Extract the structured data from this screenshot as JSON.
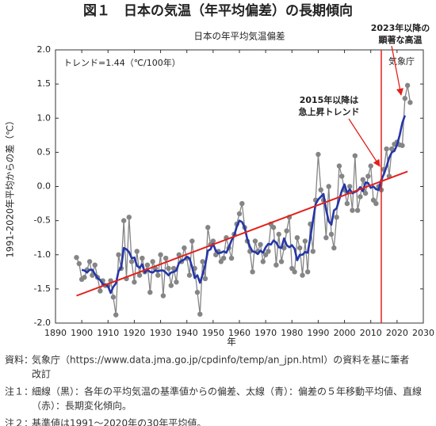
{
  "title": "図１　日本の気温（年平均偏差）の長期傾向",
  "chart_data": {
    "type": "line",
    "title": "日本の年平均気温偏差",
    "x_label": "年",
    "y_label": "1991-2020年平均からの差（℃）",
    "xlim": [
      1890,
      2030
    ],
    "xticks": [
      1890,
      1900,
      1910,
      1920,
      1930,
      1940,
      1950,
      1960,
      1970,
      1980,
      1990,
      2000,
      2010,
      2020,
      2030
    ],
    "ylim": [
      -2,
      2
    ],
    "yticks": [
      {
        "value": -2,
        "label": "-2.0"
      },
      {
        "value": -1.5,
        "label": "-1.5"
      },
      {
        "value": -1,
        "label": "-1.0"
      },
      {
        "value": -0.5,
        "label": "-0.5"
      },
      {
        "value": 0,
        "label": "0.0"
      },
      {
        "value": 0.5,
        "label": "0.5"
      },
      {
        "value": 1,
        "label": "1.0"
      },
      {
        "value": 1.5,
        "label": "1.5"
      },
      {
        "value": 2,
        "label": "2.0"
      }
    ],
    "grid": false,
    "x": [
      1898,
      1899,
      1900,
      1901,
      1902,
      1903,
      1904,
      1905,
      1906,
      1907,
      1908,
      1909,
      1910,
      1911,
      1912,
      1913,
      1914,
      1915,
      1916,
      1917,
      1918,
      1919,
      1920,
      1921,
      1922,
      1923,
      1924,
      1925,
      1926,
      1927,
      1928,
      1929,
      1930,
      1931,
      1932,
      1933,
      1934,
      1935,
      1936,
      1937,
      1938,
      1939,
      1940,
      1941,
      1942,
      1943,
      1944,
      1945,
      1946,
      1947,
      1948,
      1949,
      1950,
      1951,
      1952,
      1953,
      1954,
      1955,
      1956,
      1957,
      1958,
      1959,
      1960,
      1961,
      1962,
      1963,
      1964,
      1965,
      1966,
      1967,
      1968,
      1969,
      1970,
      1971,
      1972,
      1973,
      1974,
      1975,
      1976,
      1977,
      1978,
      1979,
      1980,
      1981,
      1982,
      1983,
      1984,
      1985,
      1986,
      1987,
      1988,
      1989,
      1990,
      1991,
      1992,
      1993,
      1994,
      1995,
      1996,
      1997,
      1998,
      1999,
      2000,
      2001,
      2002,
      2003,
      2004,
      2005,
      2006,
      2007,
      2008,
      2009,
      2010,
      2011,
      2012,
      2013,
      2014,
      2015,
      2016,
      2017,
      2018,
      2019,
      2020,
      2021,
      2022,
      2023,
      2024,
      2025
    ],
    "series": [
      {
        "color": "#858585",
        "markers": true,
        "width": 1.3,
        "values": [
          -1.04,
          -1.13,
          -1.36,
          -1.33,
          -1.22,
          -1.1,
          -1.3,
          -1.15,
          -1.33,
          -1.53,
          -1.38,
          -1.45,
          -1.45,
          -1.38,
          -1.62,
          -1.88,
          -1.0,
          -1.2,
          -0.5,
          -1.35,
          -0.45,
          -1.1,
          -1.4,
          -0.95,
          -1.3,
          -1.05,
          -1.25,
          -1.15,
          -1.55,
          -1.1,
          -1.2,
          -1.3,
          -1.0,
          -1.6,
          -1.05,
          -1.2,
          -1.45,
          -1.2,
          -1.4,
          -1.0,
          -1.1,
          -0.9,
          -1.05,
          -1.3,
          -0.8,
          -1.2,
          -1.55,
          -1.87,
          -1.1,
          -1.35,
          -0.6,
          -0.85,
          -0.8,
          -1.0,
          -0.95,
          -1.1,
          -1.05,
          -0.75,
          -0.9,
          -1.05,
          -0.7,
          -0.55,
          -0.4,
          -0.25,
          -0.6,
          -0.8,
          -0.95,
          -1.25,
          -0.8,
          -0.95,
          -0.85,
          -1.1,
          -1.0,
          -0.95,
          -0.55,
          -0.6,
          -1.15,
          -0.7,
          -1.1,
          -0.9,
          -0.65,
          -0.45,
          -1.2,
          -1.25,
          -0.75,
          -0.9,
          -1.3,
          -0.8,
          -1.25,
          -0.55,
          -0.95,
          -0.2,
          0.47,
          -0.05,
          -0.2,
          -0.75,
          0.0,
          -0.7,
          -0.9,
          -0.45,
          0.3,
          0.15,
          -0.05,
          -0.25,
          0.0,
          -0.35,
          0.45,
          -0.35,
          -0.15,
          0.1,
          -0.1,
          0.15,
          0.3,
          -0.2,
          -0.25,
          0.0,
          -0.05,
          0.25,
          0.55,
          0.15,
          0.55,
          0.62,
          0.65,
          0.61,
          0.6,
          1.29,
          1.48,
          1.23
        ]
      },
      {
        "color": "#2536a8",
        "markers": false,
        "width": 2.6,
        "values": [
          null,
          null,
          -1.22,
          -1.23,
          -1.26,
          -1.22,
          -1.22,
          -1.28,
          -1.34,
          -1.37,
          -1.43,
          -1.44,
          -1.46,
          -1.56,
          -1.47,
          -1.42,
          -1.24,
          -1.19,
          -0.9,
          -0.92,
          -0.96,
          -1.05,
          -1.04,
          -1.16,
          -1.19,
          -1.14,
          -1.26,
          -1.22,
          -1.25,
          -1.26,
          -1.23,
          -1.24,
          -1.23,
          -1.23,
          -1.26,
          -1.3,
          -1.26,
          -1.25,
          -1.23,
          -1.12,
          -1.09,
          -1.07,
          -1.03,
          -1.05,
          -1.18,
          -1.34,
          -1.3,
          -1.41,
          -1.29,
          -1.15,
          -0.94,
          -0.92,
          -0.84,
          -0.94,
          -0.98,
          -0.97,
          -0.95,
          -0.97,
          -0.89,
          -0.79,
          -0.72,
          -0.59,
          -0.5,
          -0.52,
          -0.6,
          -0.77,
          -0.88,
          -0.95,
          -0.96,
          -0.99,
          -0.94,
          -0.97,
          -0.89,
          -0.84,
          -0.85,
          -0.79,
          -0.82,
          -0.89,
          -0.9,
          -0.76,
          -0.86,
          -0.89,
          -0.86,
          -0.91,
          -1.08,
          -1.0,
          -1.0,
          -0.96,
          -0.97,
          -0.75,
          -0.5,
          -0.26,
          -0.19,
          -0.15,
          -0.11,
          -0.34,
          -0.51,
          -0.56,
          -0.35,
          -0.32,
          -0.19,
          -0.06,
          0.03,
          -0.1,
          -0.04,
          -0.1,
          -0.08,
          -0.06,
          -0.01,
          -0.07,
          0.06,
          0.05,
          -0.02,
          0.0,
          -0.04,
          -0.05,
          0.1,
          0.18,
          0.29,
          0.42,
          0.5,
          0.52,
          0.61,
          0.75,
          0.93,
          1.04,
          null,
          null
        ]
      }
    ],
    "trend": {
      "x": [
        1898,
        2024
      ],
      "values": [
        -1.6,
        0.22
      ],
      "color": "#e3201b"
    },
    "vline": {
      "x": 2014,
      "color": "#e3201b"
    },
    "annotations": {
      "trend_label": "トレンド=1.44（℃/100年）",
      "source": "気象庁",
      "recent": [
        "2023年以降の",
        "顕著な高温"
      ],
      "since2015": [
        "2015年以降は",
        "急上昇トレンド"
      ]
    }
  },
  "notes": [
    {
      "label": "資料：",
      "lines": [
        "気象庁（https://www.data.jma.go.jp/cpdinfo/temp/an_jpn.html）の資料を基に筆者",
        "改訂"
      ]
    },
    {
      "label": "注１：",
      "lines": [
        "細線（黒）：各年の平均気温の基準値からの偏差、太線（青）：偏差の５年移動平均値、直線",
        "（赤）：長期変化傾向。"
      ]
    },
    {
      "label": "注２：",
      "lines": [
        "基準値は1991～2020年の30年平均値。"
      ]
    }
  ]
}
